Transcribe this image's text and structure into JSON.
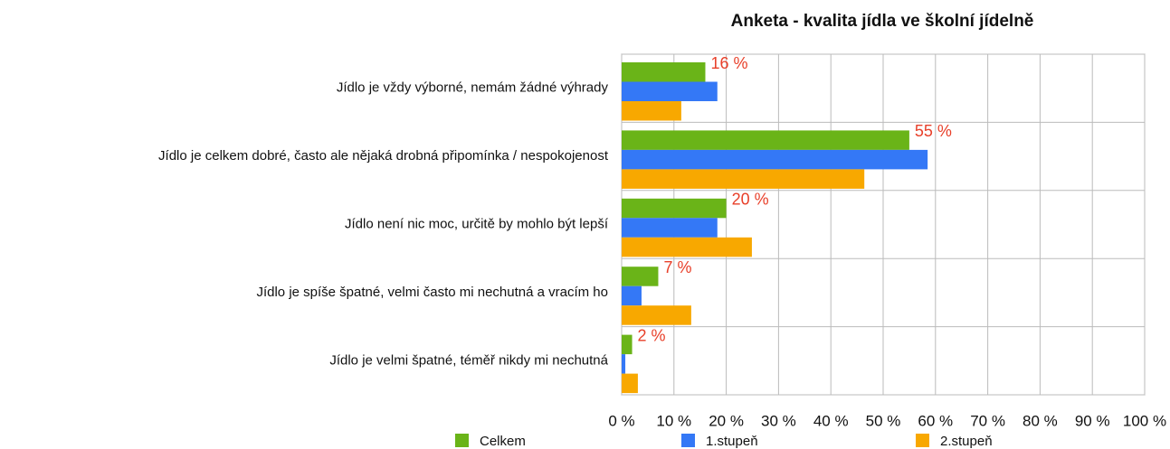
{
  "chart_data": {
    "type": "hbar",
    "title": "Anketa - kvalita jídla ve školní jídelně",
    "categories": [
      "Jídlo je vždy výborné, nemám žádné výhrady",
      "Jídlo je celkem dobré, často ale nějaká drobná připomínka / nespokojenost",
      "Jídlo není nic moc, určitě by mohlo být lepší",
      "Jídlo je spíše špatné, velmi často mi nechutná a vracím ho",
      "Jídlo je velmi špatné, téměř nikdy mi nechutná"
    ],
    "series": [
      {
        "name": "Celkem",
        "color": "#6ab418",
        "values": [
          16,
          55,
          20,
          7,
          2
        ],
        "value_labels": [
          "16 %",
          "55 %",
          "20 %",
          "7 %",
          "2 %"
        ]
      },
      {
        "name": "1.stupeň",
        "color": "#3478f6",
        "values": [
          18.3,
          58.5,
          18.3,
          3.8,
          0.7
        ]
      },
      {
        "name": "2.stupeň",
        "color": "#f8a800",
        "values": [
          11.4,
          46.4,
          24.9,
          13.3,
          3.1
        ]
      }
    ],
    "xlim": [
      0,
      100
    ],
    "xticks": [
      {
        "value": 0,
        "label": "0 %"
      },
      {
        "value": 10,
        "label": "10 %"
      },
      {
        "value": 20,
        "label": "20 %"
      },
      {
        "value": 30,
        "label": "30 %"
      },
      {
        "value": 40,
        "label": "40 %"
      },
      {
        "value": 50,
        "label": "50 %"
      },
      {
        "value": 60,
        "label": "60 %"
      },
      {
        "value": 70,
        "label": "70 %"
      },
      {
        "value": 80,
        "label": "80 %"
      },
      {
        "value": 90,
        "label": "90 %"
      },
      {
        "value": 100,
        "label": "100 %"
      }
    ],
    "grid": true,
    "legend": "bottom",
    "value_label_color": "#e8402a"
  }
}
